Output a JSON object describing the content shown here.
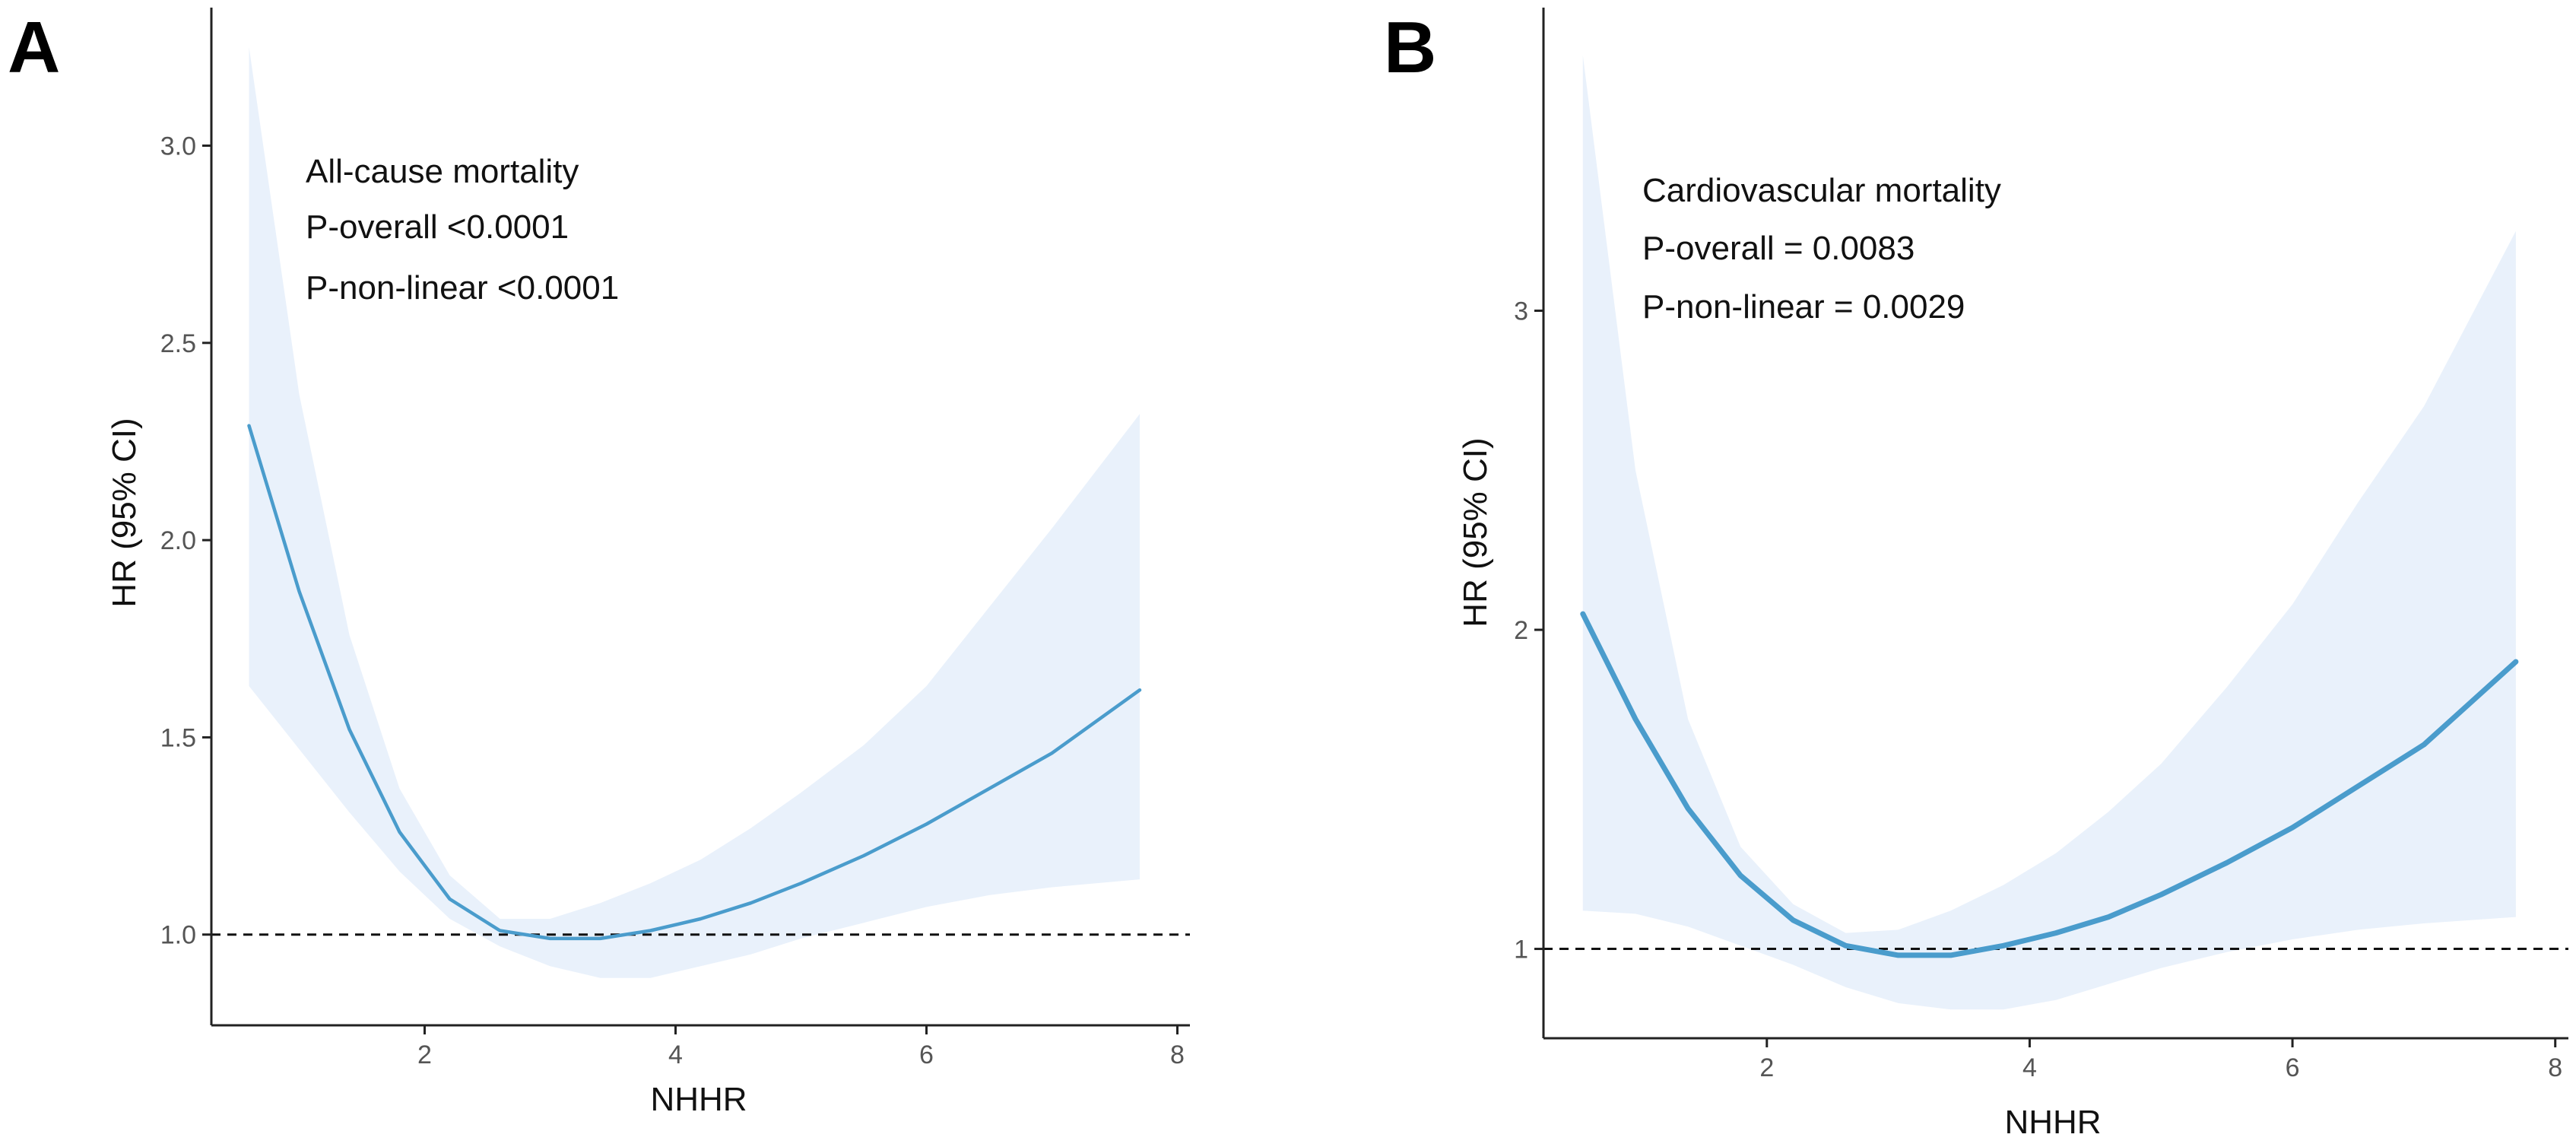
{
  "panels": [
    {
      "id": "A",
      "letter": "A",
      "annotations": [
        "All-cause mortality",
        "P-overall <0.0001",
        "P-non-linear <0.0001"
      ],
      "chart_data": {
        "type": "line",
        "title": "All-cause mortality",
        "xlabel": "NHHR",
        "ylabel": "HR (95% CI)",
        "xlim": [
          0.3,
          8.1
        ],
        "ylim": [
          0.77,
          3.35
        ],
        "xticks": [
          2,
          4,
          6,
          8
        ],
        "xtick_labels": [
          "2",
          "4",
          "6",
          "8"
        ],
        "yticks": [
          1.0,
          1.5,
          2.0,
          2.5,
          3.0
        ],
        "ytick_labels": [
          "1.0",
          "1.5",
          "2.0",
          "2.5",
          "3.0"
        ],
        "reference_line_y": 1.0,
        "series": [
          {
            "name": "HR",
            "x": [
              0.6,
              1.0,
              1.4,
              1.8,
              2.2,
              2.6,
              3.0,
              3.4,
              3.8,
              4.2,
              4.6,
              5.0,
              5.5,
              6.0,
              6.5,
              7.0,
              7.7
            ],
            "y": [
              2.29,
              1.87,
              1.52,
              1.26,
              1.09,
              1.01,
              0.99,
              0.99,
              1.01,
              1.04,
              1.08,
              1.13,
              1.2,
              1.28,
              1.37,
              1.46,
              1.62
            ],
            "lower": [
              1.63,
              1.47,
              1.31,
              1.16,
              1.04,
              0.97,
              0.92,
              0.89,
              0.89,
              0.92,
              0.95,
              0.99,
              1.03,
              1.07,
              1.1,
              1.12,
              1.14
            ],
            "upper": [
              3.25,
              2.37,
              1.76,
              1.37,
              1.15,
              1.04,
              1.04,
              1.08,
              1.13,
              1.19,
              1.27,
              1.36,
              1.48,
              1.63,
              1.83,
              2.03,
              2.32
            ]
          }
        ]
      }
    },
    {
      "id": "B",
      "letter": "B",
      "annotations": [
        "Cardiovascular mortality",
        "P-overall = 0.0083",
        "P-non-linear = 0.0029"
      ],
      "chart_data": {
        "type": "line",
        "title": "Cardiovascular mortality",
        "xlabel": "NHHR",
        "ylabel": "HR (95% CI)",
        "xlim": [
          0.3,
          8.1
        ],
        "ylim": [
          0.72,
          3.95
        ],
        "xticks": [
          2,
          4,
          6,
          8
        ],
        "xtick_labels": [
          "2",
          "4",
          "6",
          "8"
        ],
        "yticks": [
          1,
          2,
          3
        ],
        "ytick_labels": [
          "1",
          "2",
          "3"
        ],
        "reference_line_y": 1.0,
        "series": [
          {
            "name": "HR",
            "x": [
              0.6,
              1.0,
              1.4,
              1.8,
              2.2,
              2.6,
              3.0,
              3.4,
              3.8,
              4.2,
              4.6,
              5.0,
              5.5,
              6.0,
              6.5,
              7.0,
              7.7
            ],
            "y": [
              2.05,
              1.72,
              1.44,
              1.23,
              1.09,
              1.01,
              0.98,
              0.98,
              1.01,
              1.05,
              1.1,
              1.17,
              1.27,
              1.38,
              1.51,
              1.64,
              1.9
            ],
            "lower": [
              1.12,
              1.11,
              1.07,
              1.01,
              0.95,
              0.88,
              0.83,
              0.81,
              0.81,
              0.84,
              0.89,
              0.94,
              0.99,
              1.03,
              1.06,
              1.08,
              1.1
            ],
            "upper": [
              3.8,
              2.5,
              1.72,
              1.32,
              1.14,
              1.05,
              1.06,
              1.12,
              1.2,
              1.3,
              1.43,
              1.58,
              1.82,
              2.08,
              2.4,
              2.7,
              3.25
            ]
          }
        ]
      }
    }
  ],
  "colors": {
    "line": "#4a9ccc",
    "ci_band": "#e9f1fb",
    "axis": "#222222",
    "tick_label": "#555555",
    "reference": "#111111"
  }
}
